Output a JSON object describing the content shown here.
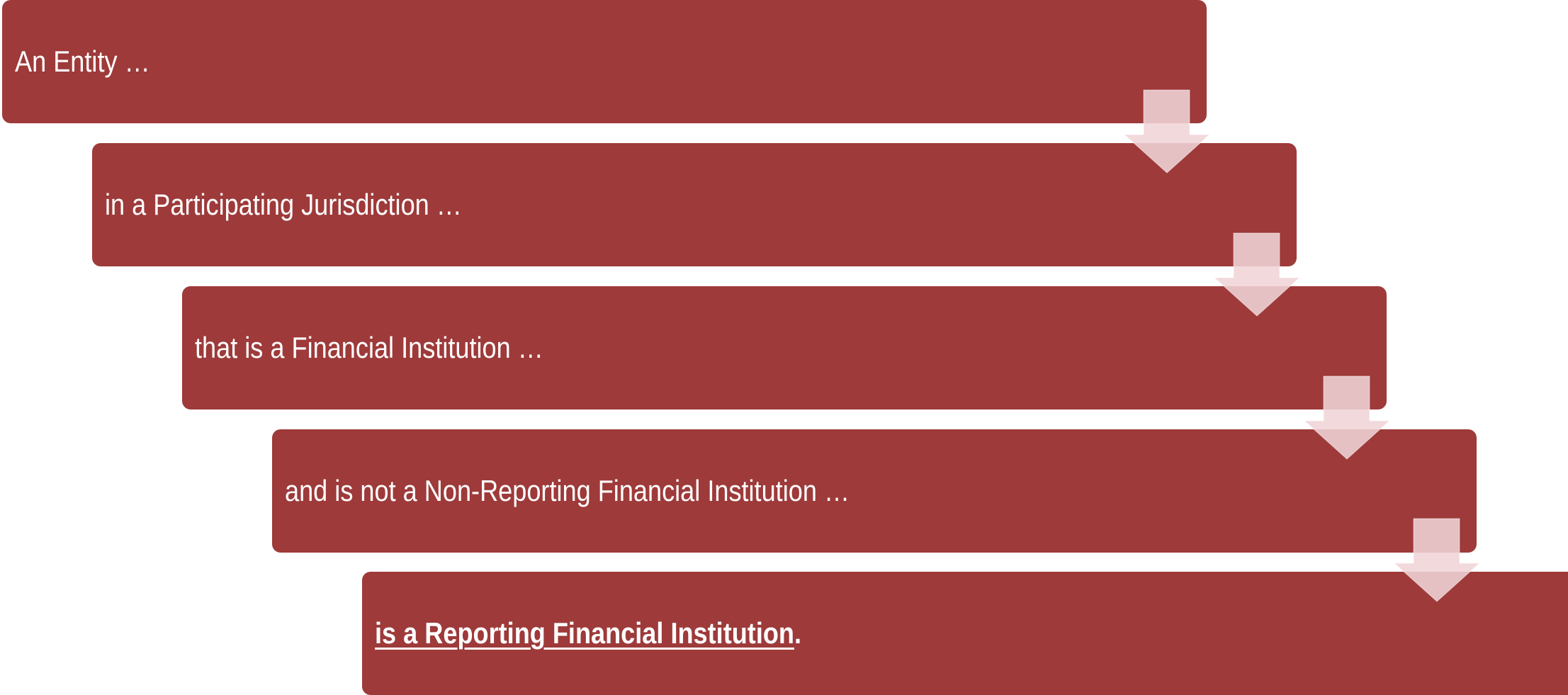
{
  "steps": [
    "An Entity …",
    "in a Participating Jurisdiction …",
    "that is a Financial Institution …",
    "and is not a Non-Reporting Financial Institution …"
  ],
  "conclusion": {
    "text": "is a Reporting Financial Institution",
    "punctuation": "."
  }
}
